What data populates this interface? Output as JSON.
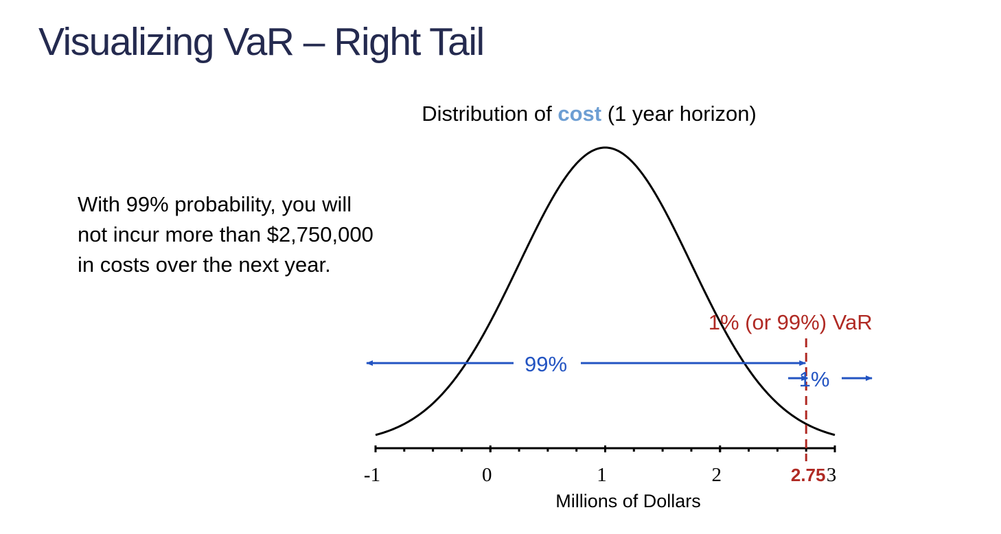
{
  "slide": {
    "title": "Visualizing VaR – Right Tail",
    "caption_lines": [
      "With 99% probability, you will",
      "not incur more than $2,750,000",
      "in costs over the next year."
    ]
  },
  "colors": {
    "title": "#242a4f",
    "accent_cost": "#6d9ed3",
    "var_red": "#b02a24",
    "arrow_blue": "#2354c2",
    "curve": "#000000"
  },
  "chart_data": {
    "type": "line",
    "title_parts": [
      {
        "text": "Distribution of ",
        "style": "normal"
      },
      {
        "text": "cost",
        "style": "accent"
      },
      {
        "text": " (1 year horizon)",
        "style": "normal"
      }
    ],
    "xlabel": "Millions of Dollars",
    "ylabel": "",
    "xlim": [
      -1,
      3
    ],
    "xticks": [
      "-1",
      "0",
      "1",
      "2",
      "3"
    ],
    "distribution": {
      "kind": "normal",
      "mean": 1.0,
      "sd": 0.75
    },
    "var_line": {
      "x": 2.75,
      "label": "2.75",
      "annotation": "1% (or 99%) VaR"
    },
    "left_region": {
      "label": "99%",
      "from": -1,
      "to": 2.75
    },
    "right_region": {
      "label": "1%",
      "from": 2.75,
      "to": 3
    }
  }
}
